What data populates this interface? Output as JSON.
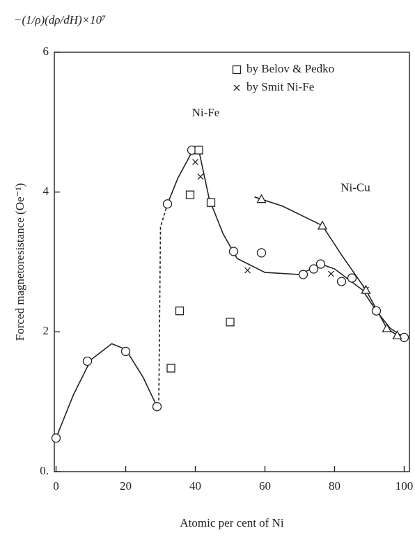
{
  "chart_data": {
    "type": "scatter",
    "formula": "−(1/ρ)(dρ/dH)×10⁷",
    "xlabel": "Atomic per cent of Ni",
    "ylabel": "Forced magnetoresistance (Oe⁻¹)",
    "xlim": [
      -0.5,
      101.5
    ],
    "ylim": [
      0,
      6
    ],
    "xticks": [
      0,
      20,
      40,
      60,
      80,
      100
    ],
    "yticks": [
      {
        "value": 0,
        "label": "0."
      },
      2,
      4,
      6
    ],
    "legend": "upper right",
    "annotations": [
      {
        "text": "Ni-Fe",
        "x": 43,
        "y": 5.12
      },
      {
        "text": "Ni-Cu",
        "x": 86,
        "y": 4.05
      }
    ],
    "series": [
      {
        "marker": "circle",
        "color": "#222",
        "x": [
          0,
          9,
          20,
          29,
          32,
          39,
          51,
          59,
          71,
          74,
          76,
          82,
          85,
          92,
          100
        ],
        "values": [
          0.48,
          1.58,
          1.72,
          0.93,
          3.83,
          4.6,
          3.15,
          3.13,
          2.82,
          2.9,
          2.97,
          2.72,
          2.77,
          2.3,
          1.92
        ]
      },
      {
        "name": "by Belov & Pedko",
        "marker": "square",
        "color": "#222",
        "x": [
          33,
          35.5,
          38.5,
          41,
          44.5,
          50
        ],
        "values": [
          1.48,
          2.3,
          3.96,
          4.6,
          3.85,
          2.14
        ]
      },
      {
        "name": "by Smit Ni-Fe",
        "marker": "cross",
        "color": "#222",
        "x": [
          40,
          41.5,
          55,
          79,
          89
        ],
        "values": [
          4.43,
          4.22,
          2.88,
          2.83,
          2.6
        ]
      },
      {
        "marker": "triangle",
        "color": "#222",
        "x": [
          59,
          76.5,
          89,
          95,
          98
        ],
        "values": [
          3.9,
          3.52,
          2.6,
          2.05,
          1.95
        ]
      },
      {
        "marker": "line",
        "color": "#222",
        "x": [
          0,
          5,
          10,
          16,
          20,
          25,
          29
        ],
        "values": [
          0.48,
          1.1,
          1.6,
          1.83,
          1.75,
          1.35,
          0.93
        ]
      },
      {
        "marker": "dashed",
        "color": "#222",
        "x": [
          29.5,
          30,
          32
        ],
        "values": [
          0.95,
          3.5,
          3.83
        ]
      },
      {
        "marker": "line",
        "color": "#222",
        "x": [
          32,
          35,
          39,
          41,
          44,
          48,
          52,
          60,
          70,
          76,
          80,
          88,
          92,
          96,
          100
        ],
        "values": [
          3.83,
          4.2,
          4.57,
          4.6,
          3.9,
          3.4,
          3.05,
          2.85,
          2.82,
          2.97,
          2.9,
          2.6,
          2.3,
          2.05,
          1.92
        ]
      },
      {
        "marker": "line",
        "color": "#222",
        "x": [
          57,
          65,
          76.5,
          82,
          89,
          95,
          98
        ],
        "values": [
          3.93,
          3.8,
          3.52,
          3.1,
          2.6,
          2.05,
          1.95
        ]
      }
    ]
  }
}
